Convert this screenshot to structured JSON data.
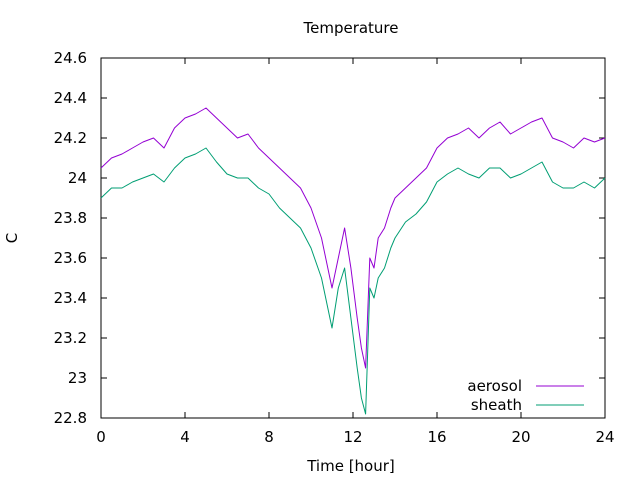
{
  "chart_data": {
    "type": "line",
    "title": "Temperature",
    "xlabel": "Time [hour]",
    "ylabel": "C",
    "xlim": [
      0,
      24
    ],
    "ylim": [
      22.8,
      24.6
    ],
    "xticks": [
      0,
      4,
      8,
      12,
      16,
      20,
      24
    ],
    "yticks": [
      22.8,
      23,
      23.2,
      23.4,
      23.6,
      23.8,
      24,
      24.2,
      24.4,
      24.6
    ],
    "grid": false,
    "legend_position": "bottom-right",
    "series": [
      {
        "name": "aerosol",
        "color": "#9400d3",
        "x": [
          0,
          0.5,
          1,
          1.5,
          2,
          2.5,
          3,
          3.5,
          4,
          4.5,
          5,
          5.5,
          6,
          6.5,
          7,
          7.5,
          8,
          8.5,
          9,
          9.5,
          10,
          10.5,
          10.8,
          11,
          11.3,
          11.6,
          11.9,
          12.2,
          12.4,
          12.6,
          12.8,
          13,
          13.2,
          13.5,
          13.8,
          14,
          14.5,
          15,
          15.5,
          16,
          16.5,
          17,
          17.5,
          18,
          18.5,
          19,
          19.5,
          20,
          20.5,
          21,
          21.5,
          22,
          22.5,
          23,
          23.5,
          24
        ],
        "y": [
          24.05,
          24.1,
          24.12,
          24.15,
          24.18,
          24.2,
          24.15,
          24.25,
          24.3,
          24.32,
          24.35,
          24.3,
          24.25,
          24.2,
          24.22,
          24.15,
          24.1,
          24.05,
          24.0,
          23.95,
          23.85,
          23.7,
          23.55,
          23.45,
          23.6,
          23.75,
          23.55,
          23.3,
          23.15,
          23.05,
          23.6,
          23.55,
          23.7,
          23.75,
          23.85,
          23.9,
          23.95,
          24.0,
          24.05,
          24.15,
          24.2,
          24.22,
          24.25,
          24.2,
          24.25,
          24.28,
          24.22,
          24.25,
          24.28,
          24.3,
          24.2,
          24.18,
          24.15,
          24.2,
          24.18,
          24.2
        ]
      },
      {
        "name": "sheath",
        "color": "#009e73",
        "x": [
          0,
          0.5,
          1,
          1.5,
          2,
          2.5,
          3,
          3.5,
          4,
          4.5,
          5,
          5.5,
          6,
          6.5,
          7,
          7.5,
          8,
          8.5,
          9,
          9.5,
          10,
          10.5,
          10.8,
          11,
          11.3,
          11.6,
          11.9,
          12.2,
          12.4,
          12.6,
          12.8,
          13,
          13.2,
          13.5,
          13.8,
          14,
          14.5,
          15,
          15.5,
          16,
          16.5,
          17,
          17.5,
          18,
          18.5,
          19,
          19.5,
          20,
          20.5,
          21,
          21.5,
          22,
          22.5,
          23,
          23.5,
          24
        ],
        "y": [
          23.9,
          23.95,
          23.95,
          23.98,
          24.0,
          24.02,
          23.98,
          24.05,
          24.1,
          24.12,
          24.15,
          24.08,
          24.02,
          24.0,
          24.0,
          23.95,
          23.92,
          23.85,
          23.8,
          23.75,
          23.65,
          23.5,
          23.35,
          23.25,
          23.45,
          23.55,
          23.3,
          23.05,
          22.9,
          22.82,
          23.45,
          23.4,
          23.5,
          23.55,
          23.65,
          23.7,
          23.78,
          23.82,
          23.88,
          23.98,
          24.02,
          24.05,
          24.02,
          24.0,
          24.05,
          24.05,
          24.0,
          24.02,
          24.05,
          24.08,
          23.98,
          23.95,
          23.95,
          23.98,
          23.95,
          24.0
        ]
      }
    ]
  }
}
